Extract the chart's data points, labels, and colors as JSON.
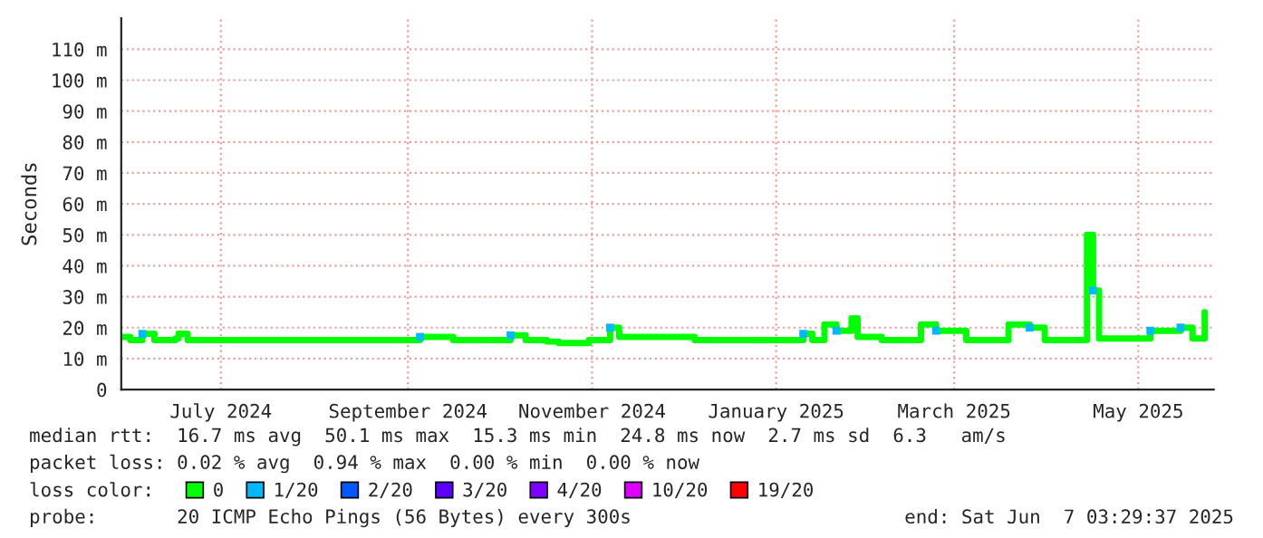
{
  "chart_data": {
    "type": "step",
    "ylabel": "Seconds",
    "legend_title": "loss color:",
    "legend": "bottom",
    "grid": true,
    "xlim": [
      "2024-06-13",
      "2025-06-10"
    ],
    "ylim": [
      0,
      120
    ],
    "xticks": [
      {
        "value": "2024-07-16",
        "label": "July 2024"
      },
      {
        "value": "2024-09-16",
        "label": "September 2024"
      },
      {
        "value": "2024-11-16",
        "label": "November 2024"
      },
      {
        "value": "2025-01-16",
        "label": "January 2025"
      },
      {
        "value": "2025-03-16",
        "label": "March 2025"
      },
      {
        "value": "2025-05-16",
        "label": "May 2025"
      }
    ],
    "yticks": [
      {
        "value": 0,
        "label": "0"
      },
      {
        "value": 10,
        "label": "10 m"
      },
      {
        "value": 20,
        "label": "20 m"
      },
      {
        "value": 30,
        "label": "30 m"
      },
      {
        "value": 40,
        "label": "40 m"
      },
      {
        "value": 50,
        "label": "50 m"
      },
      {
        "value": 60,
        "label": "60 m"
      },
      {
        "value": 70,
        "label": "70 m"
      },
      {
        "value": 80,
        "label": "80 m"
      },
      {
        "value": 90,
        "label": "90 m"
      },
      {
        "value": 100,
        "label": "100 m"
      },
      {
        "value": 110,
        "label": "110 m"
      }
    ],
    "x": [
      "2024-06-13",
      "2024-06-16",
      "2024-06-20",
      "2024-06-24",
      "2024-07-01",
      "2024-07-02",
      "2024-07-05",
      "2024-08-20",
      "2024-09-20",
      "2024-10-01",
      "2024-10-20",
      "2024-10-25",
      "2024-11-01",
      "2024-11-05",
      "2024-11-15",
      "2024-11-22",
      "2024-11-25",
      "2024-12-20",
      "2025-01-10",
      "2025-01-25",
      "2025-01-28",
      "2025-02-01",
      "2025-02-05",
      "2025-02-10",
      "2025-02-12",
      "2025-02-20",
      "2025-03-05",
      "2025-03-10",
      "2025-03-20",
      "2025-04-03",
      "2025-04-10",
      "2025-04-15",
      "2025-04-29",
      "2025-05-01",
      "2025-05-03",
      "2025-05-20",
      "2025-05-30",
      "2025-06-03",
      "2025-06-07"
    ],
    "series": [
      {
        "name": "0",
        "color": "#00ff00",
        "values": [
          17,
          16,
          18,
          16,
          16.5,
          18,
          16,
          16,
          17,
          16,
          17.5,
          16,
          15.5,
          15,
          16,
          20,
          17,
          16,
          16,
          18,
          16,
          21,
          19,
          23,
          17,
          16,
          21,
          19,
          16,
          21,
          20,
          16,
          50,
          32,
          16.5,
          19,
          20,
          16.5,
          25
        ]
      },
      {
        "name": "1/20",
        "color": "#00b8ff",
        "type": "scatter",
        "marker": "square",
        "values": [
          null,
          null,
          18,
          null,
          null,
          null,
          null,
          null,
          17,
          null,
          17.5,
          null,
          null,
          null,
          null,
          20,
          null,
          null,
          null,
          18,
          null,
          null,
          19,
          null,
          null,
          null,
          null,
          19,
          null,
          null,
          20,
          null,
          null,
          32,
          null,
          19,
          20,
          null,
          null
        ]
      },
      {
        "name": "2/20",
        "color": "#0059ff",
        "type": "scatter",
        "marker": "square",
        "values": [
          null,
          null,
          null,
          null,
          null,
          null,
          null,
          null,
          null,
          null,
          null,
          null,
          null,
          null,
          null,
          null,
          null,
          null,
          null,
          null,
          null,
          null,
          null,
          null,
          null,
          null,
          null,
          null,
          null,
          null,
          null,
          null,
          null,
          null,
          null,
          null,
          null,
          null,
          null
        ]
      },
      {
        "name": "3/20",
        "color": "#5e00ff",
        "type": "scatter",
        "marker": "square",
        "values": [
          null,
          null,
          null,
          null,
          null,
          null,
          null,
          null,
          null,
          null,
          null,
          null,
          null,
          null,
          null,
          null,
          null,
          null,
          null,
          null,
          null,
          null,
          null,
          null,
          null,
          null,
          null,
          null,
          null,
          null,
          null,
          null,
          null,
          null,
          null,
          null,
          null,
          null,
          null
        ]
      },
      {
        "name": "4/20",
        "color": "#7e00ff",
        "type": "scatter",
        "marker": "square",
        "values": [
          null,
          null,
          null,
          null,
          null,
          null,
          null,
          null,
          null,
          null,
          null,
          null,
          null,
          null,
          null,
          null,
          null,
          null,
          null,
          null,
          null,
          null,
          null,
          null,
          null,
          null,
          null,
          null,
          null,
          null,
          null,
          null,
          null,
          null,
          null,
          null,
          null,
          null,
          null
        ]
      },
      {
        "name": "10/20",
        "color": "#dd00ff",
        "type": "scatter",
        "marker": "square",
        "values": [
          null,
          null,
          null,
          null,
          null,
          null,
          null,
          null,
          null,
          null,
          null,
          null,
          null,
          null,
          null,
          null,
          null,
          null,
          null,
          null,
          null,
          null,
          null,
          null,
          null,
          null,
          null,
          null,
          null,
          null,
          null,
          null,
          null,
          null,
          null,
          null,
          null,
          null,
          null
        ]
      },
      {
        "name": "19/20",
        "color": "#ff0000",
        "type": "scatter",
        "marker": "square",
        "values": [
          null,
          null,
          null,
          null,
          null,
          null,
          null,
          null,
          null,
          null,
          null,
          null,
          null,
          null,
          null,
          null,
          null,
          null,
          null,
          null,
          null,
          null,
          null,
          null,
          null,
          null,
          null,
          null,
          null,
          null,
          null,
          null,
          null,
          null,
          null,
          null,
          null,
          null,
          null
        ]
      }
    ],
    "annotations": [
      "median rtt:  16.7 ms avg  50.1 ms max  15.3 ms min  24.8 ms now  2.7 ms sd  6.3   am/s",
      "packet loss: 0.02 % avg  0.94 % max  0.00 % min  0.00 % now",
      "probe:       20 ICMP Echo Pings (56 Bytes) every 300s",
      "end: Sat Jun  7 03:29:37 2025"
    ]
  }
}
